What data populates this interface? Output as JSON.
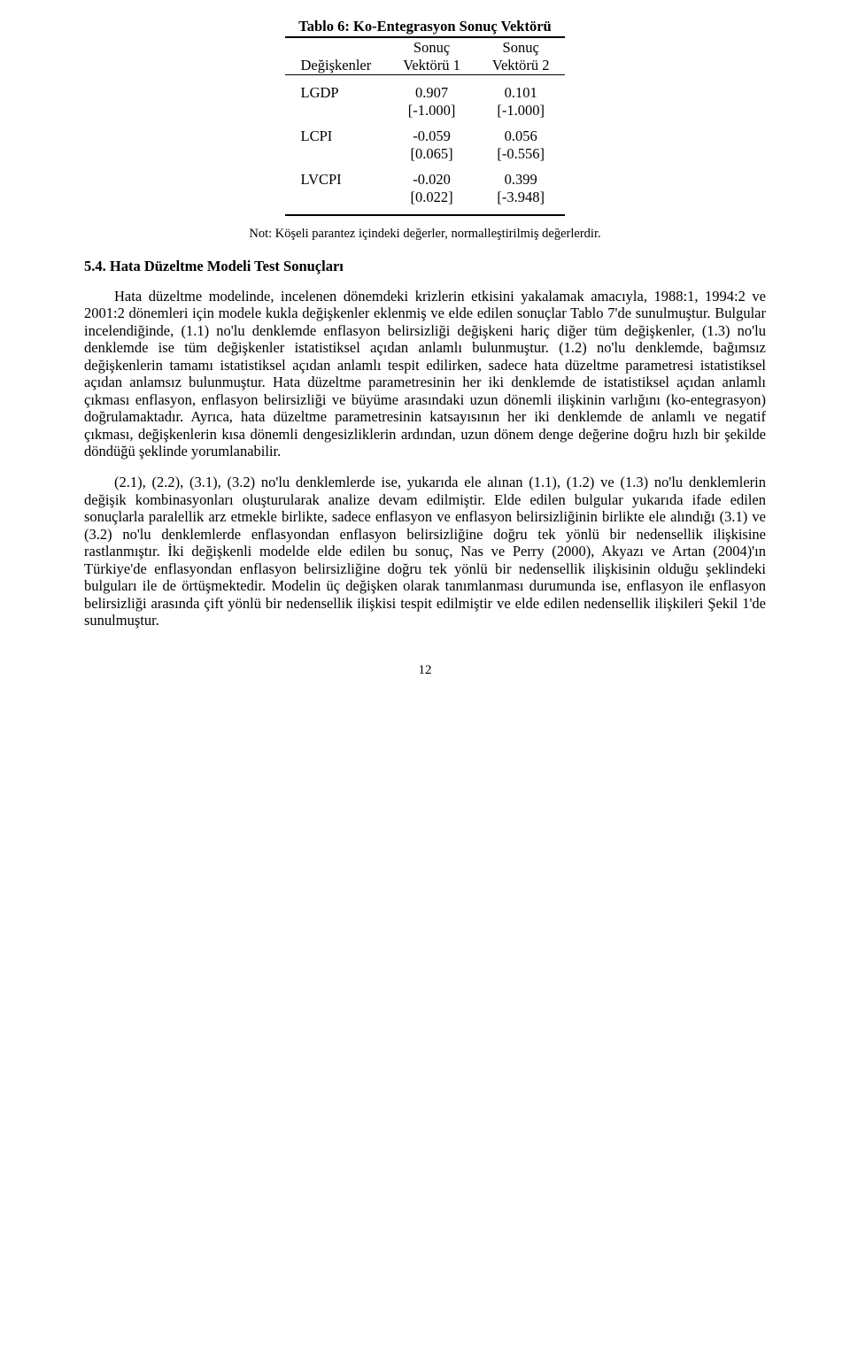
{
  "table": {
    "title": "Tablo 6: Ko-Entegrasyon Sonuç Vektörü",
    "header": {
      "col0": "Değişkenler",
      "col1_top": "Sonuç",
      "col1_bot": "Vektörü 1",
      "col2_top": "Sonuç",
      "col2_bot": "Vektörü 2"
    },
    "rows": [
      {
        "label": "LGDP",
        "v1": "0.907",
        "b1": "[-1.000]",
        "v2": "0.101",
        "b2": "[-1.000]"
      },
      {
        "label": "LCPI",
        "v1": "-0.059",
        "b1": "[0.065]",
        "v2": "0.056",
        "b2": "[-0.556]"
      },
      {
        "label": "LVCPI",
        "v1": "-0.020",
        "b1": "[0.022]",
        "v2": "0.399",
        "b2": "[-3.948]"
      }
    ],
    "note": "Not: Köşeli parantez içindeki değerler, normalleştirilmiş değerlerdir."
  },
  "section": {
    "num": "5.4.",
    "title": "Hata Düzeltme Modeli Test Sonuçları"
  },
  "paras": {
    "p1": "Hata düzeltme modelinde, incelenen dönemdeki krizlerin etkisini yakalamak amacıyla, 1988:1, 1994:2 ve 2001:2 dönemleri için modele kukla değişkenler eklenmiş ve elde edilen sonuçlar Tablo 7'de sunulmuştur. Bulgular incelendiğinde, (1.1) no'lu denklemde enflasyon belirsizliği değişkeni hariç diğer tüm değişkenler, (1.3) no'lu denklemde ise tüm değişkenler istatistiksel açıdan anlamlı bulunmuştur. (1.2) no'lu denklemde, bağımsız değişkenlerin tamamı istatistiksel açıdan anlamlı tespit edilirken, sadece hata düzeltme parametresi istatistiksel açıdan anlamsız bulunmuştur. Hata düzeltme parametresinin her iki denklemde de istatistiksel açıdan anlamlı çıkması enflasyon, enflasyon belirsizliği ve büyüme arasındaki uzun dönemli ilişkinin varlığını (ko-entegrasyon) doğrulamaktadır. Ayrıca, hata düzeltme parametresinin katsayısının her iki denklemde de anlamlı ve negatif çıkması, değişkenlerin kısa dönemli dengesizliklerin ardından, uzun dönem denge değerine doğru hızlı bir şekilde döndüğü şeklinde yorumlanabilir.",
    "p2": "(2.1), (2.2), (3.1), (3.2) no'lu denklemlerde ise, yukarıda ele alınan (1.1), (1.2) ve (1.3) no'lu denklemlerin değişik kombinasyonları oluşturularak analize devam edilmiştir. Elde edilen bulgular yukarıda ifade edilen sonuçlarla paralellik arz etmekle birlikte, sadece enflasyon ve enflasyon belirsizliğinin birlikte ele alındığı (3.1) ve (3.2) no'lu denklemlerde enflasyondan enflasyon belirsizliğine doğru tek yönlü bir nedensellik ilişkisine rastlanmıştır. İki değişkenli modelde elde edilen bu sonuç, Nas ve Perry (2000), Akyazı ve Artan (2004)'ın Türkiye'de enflasyondan enflasyon belirsizliğine doğru tek yönlü bir nedensellik ilişkisinin olduğu şeklindeki bulguları ile de örtüşmektedir. Modelin üç değişken olarak tanımlanması durumunda ise, enflasyon ile enflasyon belirsizliği arasında çift yönlü bir nedensellik ilişkisi tespit edilmiştir ve elde edilen nedensellik ilişkileri Şekil 1'de sunulmuştur."
  },
  "page": "12"
}
